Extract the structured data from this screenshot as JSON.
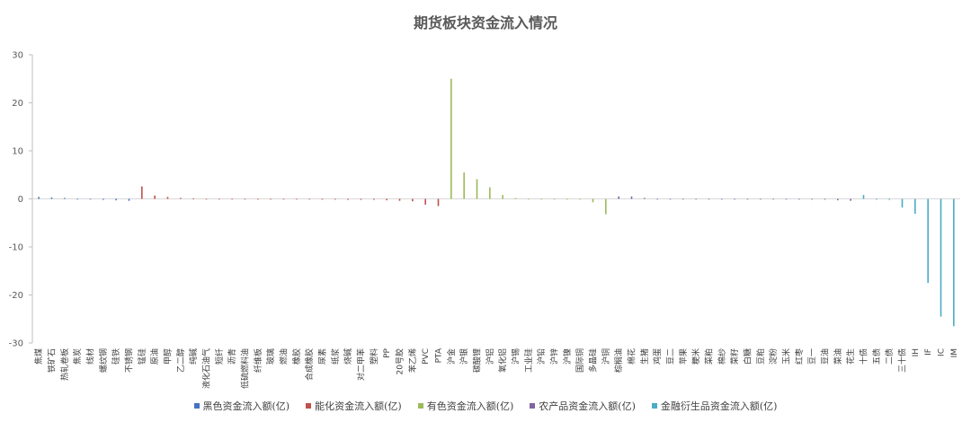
{
  "chart_data": {
    "type": "bar",
    "title": "期货板块资金流入情况",
    "xlabel": "",
    "ylabel": "",
    "ylim": [
      -30,
      30
    ],
    "yticks": [
      30,
      20,
      10,
      0,
      -10,
      -20,
      -30
    ],
    "grid": false,
    "legend_position": "bottom",
    "categories": [
      "焦煤",
      "铁矿石",
      "热轧卷板",
      "焦炭",
      "线材",
      "螺纹钢",
      "硅铁",
      "不锈钢",
      "锰硅",
      "原油",
      "甲醇",
      "乙二醇",
      "纯碱",
      "液化石油气",
      "短纤",
      "沥青",
      "低硫燃料油",
      "纤维板",
      "玻璃",
      "燃油",
      "橡胶",
      "合成橡胶",
      "尿素",
      "纸浆",
      "烧碱",
      "对二甲苯",
      "塑料",
      "PP",
      "20号胶",
      "苯乙烯",
      "PVC",
      "PTA",
      "沪金",
      "沪银",
      "碳酸锂",
      "沪铝",
      "氧化铝",
      "沪锡",
      "工业硅",
      "沪铅",
      "沪锌",
      "沪镍",
      "国际铜",
      "多晶硅",
      "沪铜",
      "棕榈油",
      "棉花",
      "生猪",
      "鸡蛋",
      "豆二",
      "苹果",
      "粳米",
      "菜粕",
      "棉纱",
      "菜籽",
      "白糖",
      "豆粕",
      "淀粉",
      "玉米",
      "红枣",
      "豆一",
      "豆油",
      "菜油",
      "花生",
      "十债",
      "五债",
      "二债",
      "三十债",
      "IH",
      "IF",
      "IC",
      "IM"
    ],
    "series": [
      {
        "name": "黑色资金流入额(亿)",
        "color": "#4472C4",
        "values": [
          0.4,
          0.3,
          0.2,
          0,
          0,
          -0.2,
          -0.3,
          -0.4,
          null,
          null,
          null,
          null,
          null,
          null,
          null,
          null,
          null,
          null,
          null,
          null,
          null,
          null,
          null,
          null,
          null,
          null,
          null,
          null,
          null,
          null,
          null,
          null,
          null,
          null,
          null,
          null,
          null,
          null,
          null,
          null,
          null,
          null,
          null,
          null,
          null,
          null,
          null,
          null,
          null,
          null,
          null,
          null,
          null,
          null,
          null,
          null,
          null,
          null,
          null,
          null,
          null,
          null,
          null,
          null,
          null,
          null,
          null,
          null,
          null,
          null,
          null,
          null
        ]
      },
      {
        "name": "能化资金流入额(亿)",
        "color": "#C0504D",
        "values": [
          null,
          null,
          null,
          null,
          null,
          null,
          null,
          null,
          2.6,
          0.7,
          0.4,
          0.2,
          0.1,
          0,
          0,
          0,
          0,
          0,
          0,
          0,
          0,
          0,
          -0.1,
          -0.1,
          -0.2,
          -0.2,
          -0.2,
          -0.3,
          -0.4,
          -0.5,
          -1.2,
          -1.5,
          null,
          null,
          null,
          null,
          null,
          null,
          null,
          null,
          null,
          null,
          null,
          null,
          null,
          null,
          null,
          null,
          null,
          null,
          null,
          null,
          null,
          null,
          null,
          null,
          null,
          null,
          null,
          null,
          null,
          null,
          null,
          null,
          null,
          null,
          null,
          null,
          null,
          null,
          null,
          null
        ]
      },
      {
        "name": "有色资金流入额(亿)",
        "color": "#9BBB59",
        "values": [
          null,
          null,
          null,
          null,
          null,
          null,
          null,
          null,
          null,
          null,
          null,
          null,
          null,
          null,
          null,
          null,
          null,
          null,
          null,
          null,
          null,
          null,
          null,
          null,
          null,
          null,
          null,
          null,
          null,
          null,
          null,
          null,
          25,
          5.5,
          4.1,
          2.4,
          0.8,
          0.2,
          0,
          0,
          0,
          -0.1,
          -0.1,
          -0.7,
          -3.2,
          null,
          null,
          null,
          null,
          null,
          null,
          null,
          null,
          null,
          null,
          null,
          null,
          null,
          null,
          null,
          null,
          null,
          null,
          null,
          null,
          null,
          null,
          null,
          null,
          null,
          null,
          null
        ]
      },
      {
        "name": "农产品资金流入额(亿)",
        "color": "#8064A2",
        "values": [
          null,
          null,
          null,
          null,
          null,
          null,
          null,
          null,
          null,
          null,
          null,
          null,
          null,
          null,
          null,
          null,
          null,
          null,
          null,
          null,
          null,
          null,
          null,
          null,
          null,
          null,
          null,
          null,
          null,
          null,
          null,
          null,
          null,
          null,
          null,
          null,
          null,
          null,
          null,
          null,
          null,
          null,
          null,
          null,
          null,
          0.5,
          0.5,
          0.2,
          0,
          0,
          0,
          0,
          0,
          0,
          0,
          0,
          0,
          0,
          0,
          0,
          0,
          -0.1,
          -0.3,
          -0.4,
          null,
          null,
          null,
          null,
          null,
          null,
          null,
          null
        ]
      },
      {
        "name": "金融衍生品资金流入额(亿)",
        "color": "#4BACC6",
        "values": [
          null,
          null,
          null,
          null,
          null,
          null,
          null,
          null,
          null,
          null,
          null,
          null,
          null,
          null,
          null,
          null,
          null,
          null,
          null,
          null,
          null,
          null,
          null,
          null,
          null,
          null,
          null,
          null,
          null,
          null,
          null,
          null,
          null,
          null,
          null,
          null,
          null,
          null,
          null,
          null,
          null,
          null,
          null,
          null,
          null,
          null,
          null,
          null,
          null,
          null,
          null,
          null,
          null,
          null,
          null,
          null,
          null,
          null,
          null,
          null,
          null,
          null,
          null,
          null,
          0.8,
          -0.1,
          -0.2,
          -1.8,
          -3.1,
          -17.5,
          -24.5,
          -26.5
        ]
      }
    ]
  }
}
